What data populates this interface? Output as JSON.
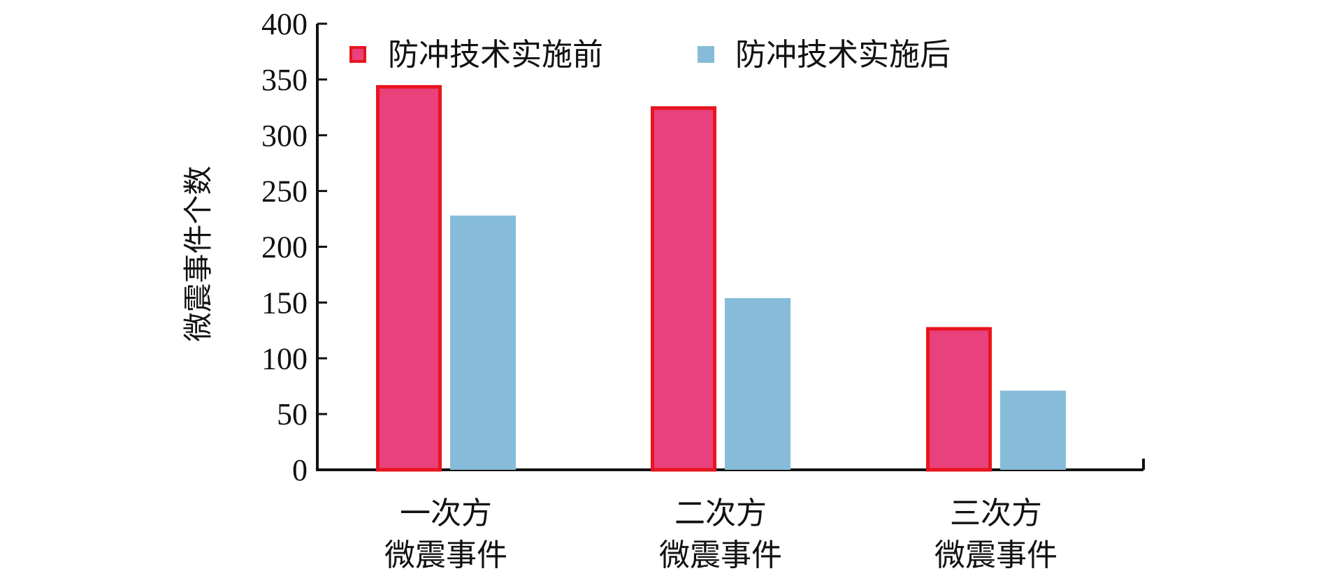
{
  "chart_data": {
    "type": "bar",
    "title": "",
    "xlabel": "",
    "ylabel": "微震事件个数",
    "ylim": [
      0,
      400
    ],
    "yticks": [
      0,
      50,
      100,
      150,
      200,
      250,
      300,
      350,
      400
    ],
    "grid": false,
    "legend_position": "top",
    "categories": [
      [
        "一次方",
        "微震事件"
      ],
      [
        "二次方",
        "微震事件"
      ],
      [
        "三次方",
        "微震事件"
      ]
    ],
    "series": [
      {
        "name": "防冲技术实施前",
        "values": [
          345,
          326,
          128
        ],
        "fill": "#e8417c",
        "stroke": "#e8141e"
      },
      {
        "name": "防冲技术实施后",
        "values": [
          228,
          154,
          71
        ],
        "fill": "#86bcd9",
        "stroke": "#86bcd9"
      }
    ]
  },
  "colors": {
    "axis": "#111111",
    "background": "#ffffff"
  }
}
